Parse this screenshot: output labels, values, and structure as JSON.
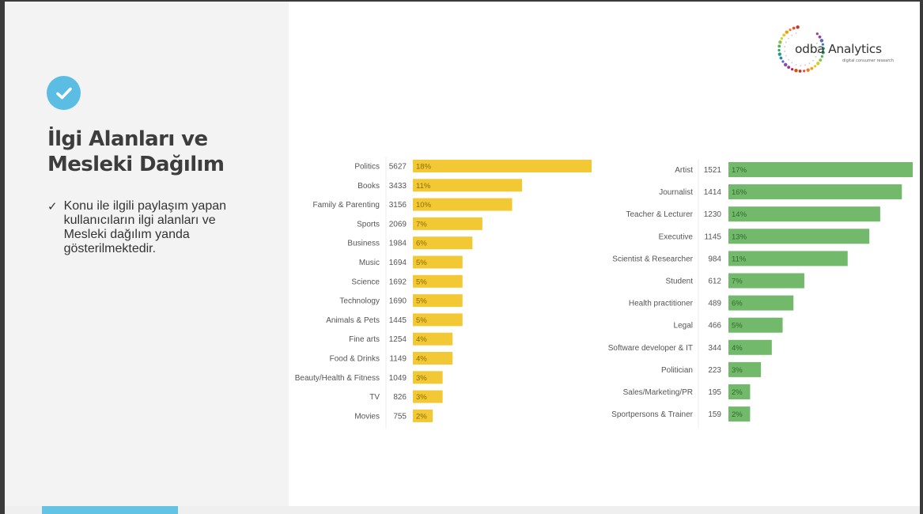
{
  "left_panel": {
    "title_line1": "İlgi Alanları ve",
    "title_line2": "Mesleki Dağılım",
    "bullet_mark": "✓",
    "bullet_text": "Konu ile ilgili paylaşım yapan kullanıcıların ilgi alanları ve Mesleki dağılım yanda gösterilmektedir.",
    "badge_icon": "check-icon",
    "badge_color": "#5bbde4"
  },
  "logo": {
    "wordmark": "odba Analytics",
    "tagline": "digital consumer research"
  },
  "colors": {
    "interests_bar": "#f2c935",
    "interests_pct_text": "#8a6d00",
    "professions_bar": "#72b96b",
    "professions_pct_text": "#2f6b2a",
    "footer_accent": "#62c3e4"
  },
  "chart_data": [
    {
      "type": "bar",
      "orientation": "horizontal",
      "title": "",
      "xlabel": "",
      "ylabel": "",
      "categories": [
        "Politics",
        "Books",
        "Family & Parenting",
        "Sports",
        "Business",
        "Music",
        "Science",
        "Technology",
        "Animals & Pets",
        "Fine arts",
        "Food & Drinks",
        "Beauty/Health & Fitness",
        "TV",
        "Movies"
      ],
      "values": [
        5627,
        3433,
        3156,
        2069,
        1984,
        1694,
        1692,
        1690,
        1445,
        1254,
        1149,
        1049,
        826,
        755
      ],
      "value_labels": [
        "5627",
        "3433",
        "3156",
        "2069",
        "1984",
        "1694",
        "1692",
        "1690",
        "1445",
        "1254",
        "1149",
        "1049",
        "826",
        "755"
      ],
      "percent_labels": [
        "18%",
        "11%",
        "10%",
        "7%",
        "6%",
        "5%",
        "5%",
        "5%",
        "5%",
        "4%",
        "4%",
        "3%",
        "3%",
        "2%"
      ],
      "percents": [
        18,
        11,
        10,
        7,
        6,
        5,
        5,
        5,
        5,
        4,
        4,
        3,
        3,
        2
      ],
      "xlim": [
        0,
        18
      ],
      "grid": false
    },
    {
      "type": "bar",
      "orientation": "horizontal",
      "title": "",
      "xlabel": "",
      "ylabel": "",
      "categories": [
        "Artist",
        "Journalist",
        "Teacher & Lecturer",
        "Executive",
        "Scientist & Researcher",
        "Student",
        "Health practitioner",
        "Legal",
        "Software developer & IT",
        "Politician",
        "Sales/Marketing/PR",
        "Sportpersons & Trainer"
      ],
      "values": [
        1521,
        1414,
        1230,
        1145,
        984,
        612,
        489,
        466,
        344,
        223,
        195,
        159
      ],
      "value_labels": [
        "1521",
        "1414",
        "1230",
        "1145",
        "984",
        "612",
        "489",
        "466",
        "344",
        "223",
        "195",
        "159"
      ],
      "percent_labels": [
        "17%",
        "16%",
        "14%",
        "13%",
        "11%",
        "7%",
        "6%",
        "5%",
        "4%",
        "3%",
        "2%",
        "2%"
      ],
      "percents": [
        17,
        16,
        14,
        13,
        11,
        7,
        6,
        5,
        4,
        3,
        2,
        2
      ],
      "xlim": [
        0,
        17
      ],
      "grid": false
    }
  ]
}
